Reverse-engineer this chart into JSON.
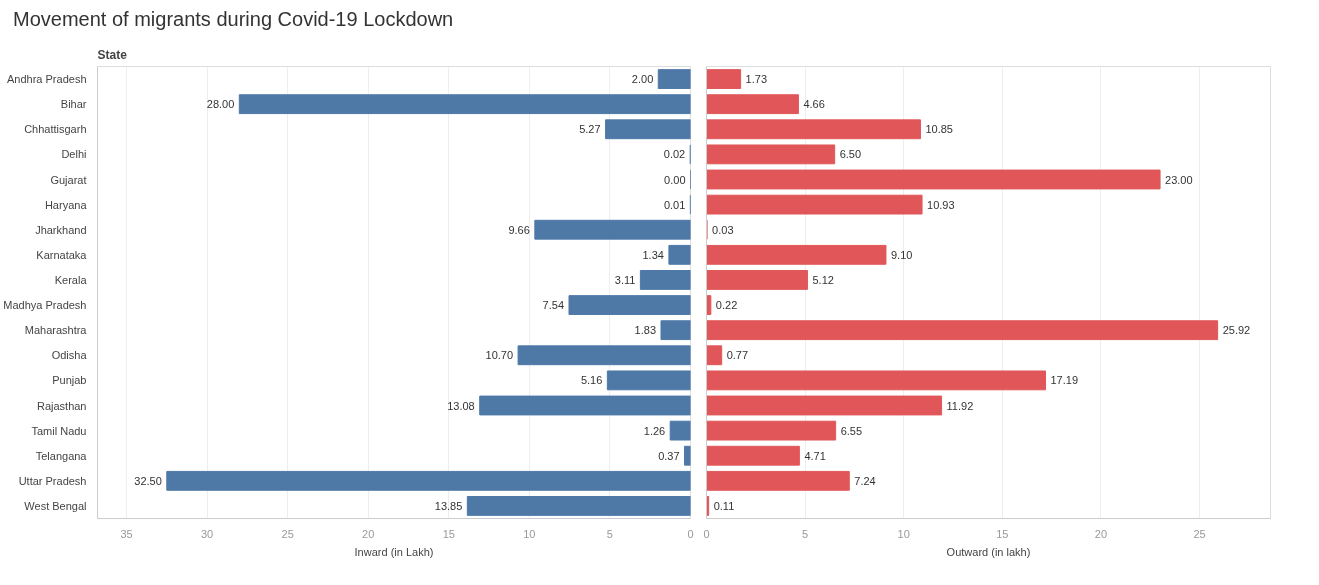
{
  "chart_data": [
    {
      "type": "bar",
      "orientation": "horizontal",
      "title": "Movement of migrants during Covid-19 Lockdown",
      "ylabel": "State",
      "xlabel": "Inward (in Lakh)",
      "categories": [
        "Andhra Pradesh",
        "Bihar",
        "Chhattisgarh",
        "Delhi",
        "Gujarat",
        "Haryana",
        "Jharkhand",
        "Karnataka",
        "Kerala",
        "Madhya Pradesh",
        "Maharashtra",
        "Odisha",
        "Punjab",
        "Rajasthan",
        "Tamil Nadu",
        "Telangana",
        "Uttar Pradesh",
        "West Bengal"
      ],
      "values": [
        2.0,
        28.0,
        5.27,
        0.02,
        0.0,
        0.01,
        9.66,
        1.34,
        3.11,
        7.54,
        1.83,
        10.7,
        5.16,
        13.08,
        1.26,
        0.37,
        32.5,
        13.85
      ],
      "value_labels": [
        "2.00",
        "28.00",
        "5.27",
        "0.02",
        "0.00",
        "0.01",
        "9.66",
        "1.34",
        "3.11",
        "7.54",
        "1.83",
        "10.70",
        "5.16",
        "13.08",
        "1.26",
        "0.37",
        "32.50",
        "13.85"
      ],
      "color": "#4e79a7",
      "xlim": [
        36.8,
        0
      ],
      "xticks": [
        35,
        30,
        25,
        20,
        15,
        10,
        5,
        0
      ],
      "grid": "x"
    },
    {
      "type": "bar",
      "orientation": "horizontal",
      "xlabel": "Outward (in lakh)",
      "categories": [
        null,
        null,
        null,
        null,
        null,
        null,
        null,
        null,
        null,
        null,
        null,
        null,
        null,
        null,
        null,
        null,
        null,
        null
      ],
      "values": [
        1.73,
        4.66,
        10.85,
        6.5,
        23.0,
        10.93,
        0.03,
        9.1,
        5.12,
        0.22,
        25.92,
        0.77,
        17.19,
        11.92,
        6.55,
        4.71,
        7.24,
        0.11
      ],
      "value_labels": [
        "1.73",
        "4.66",
        "10.85",
        "6.50",
        "23.00",
        "10.93",
        "0.03",
        "9.10",
        "5.12",
        "0.22",
        "25.92",
        "0.77",
        "17.19",
        "11.92",
        "6.55",
        "4.71",
        "7.24",
        "0.11"
      ],
      "color": "#e15759",
      "xlim": [
        0,
        28.6
      ],
      "xticks": [
        0,
        5,
        10,
        15,
        20,
        25
      ],
      "grid": "x"
    }
  ]
}
